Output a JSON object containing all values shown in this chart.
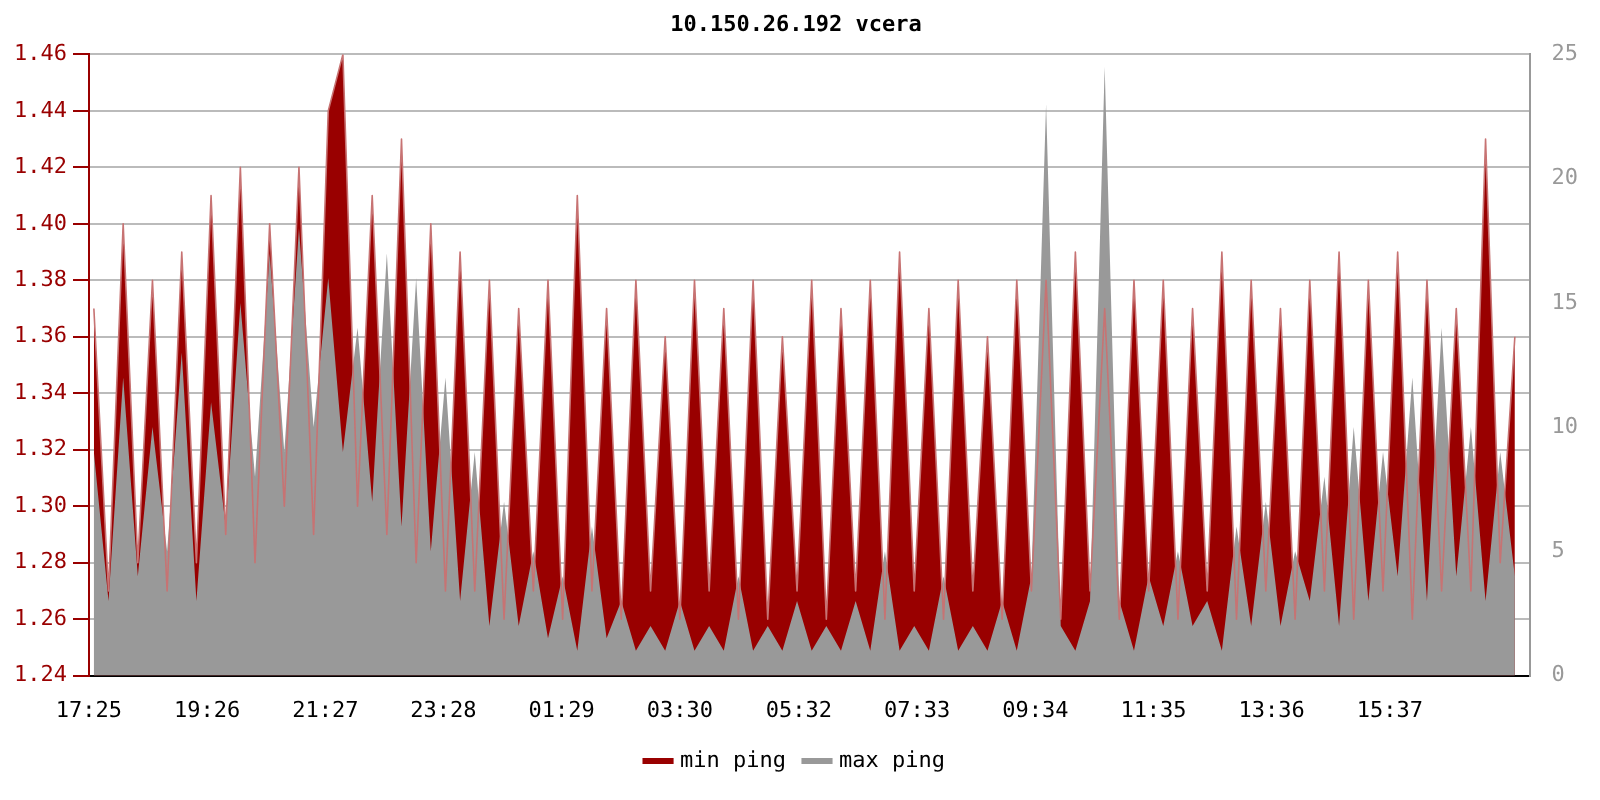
{
  "chart_data": {
    "type": "area",
    "title": "10.150.26.192 vcera",
    "x": [
      "--01-01T17:30",
      "--01-01T17:45",
      "--01-01T18:00",
      "--01-01T18:15",
      "--01-01T18:30",
      "--01-01T18:45",
      "--01-01T19:00",
      "--01-01T19:15",
      "--01-01T19:30",
      "--01-01T19:45",
      "--01-01T20:00",
      "--01-01T20:15",
      "--01-01T20:30",
      "--01-01T20:45",
      "--01-01T21:00",
      "--01-01T21:15",
      "--01-01T21:30",
      "--01-01T21:45",
      "--01-01T22:00",
      "--01-01T22:15",
      "--01-01T22:30",
      "--01-01T22:45",
      "--01-01T23:00",
      "--01-01T23:15",
      "--01-01T23:30",
      "--01-01T23:45",
      "--01-02T00:00",
      "--01-02T00:15",
      "--01-02T00:30",
      "--01-02T00:45",
      "--01-02T01:00",
      "--01-02T01:15",
      "--01-02T01:30",
      "--01-02T01:45",
      "--01-02T02:00",
      "--01-02T02:15",
      "--01-02T02:30",
      "--01-02T02:45",
      "--01-02T03:00",
      "--01-02T03:15",
      "--01-02T03:30",
      "--01-02T03:45",
      "--01-02T04:00",
      "--01-02T04:15",
      "--01-02T04:30",
      "--01-02T04:45",
      "--01-02T05:00",
      "--01-02T05:15",
      "--01-02T05:30",
      "--01-02T05:45",
      "--01-02T06:00",
      "--01-02T06:15",
      "--01-02T06:30",
      "--01-02T06:45",
      "--01-02T07:00",
      "--01-02T07:15",
      "--01-02T07:30",
      "--01-02T07:45",
      "--01-02T08:00",
      "--01-02T08:15",
      "--01-02T08:30",
      "--01-02T08:45",
      "--01-02T09:00",
      "--01-02T09:15",
      "--01-02T09:30",
      "--01-02T09:45",
      "--01-02T10:00",
      "--01-02T10:15",
      "--01-02T10:30",
      "--01-02T10:45",
      "--01-02T11:00",
      "--01-02T11:15",
      "--01-02T11:30",
      "--01-02T11:45",
      "--01-02T12:00",
      "--01-02T12:15",
      "--01-02T12:30",
      "--01-02T12:45",
      "--01-02T13:00",
      "--01-02T13:15",
      "--01-02T13:30",
      "--01-02T13:45",
      "--01-02T14:00",
      "--01-02T14:15",
      "--01-02T14:30",
      "--01-02T14:45",
      "--01-02T15:00",
      "--01-02T15:15",
      "--01-02T15:30",
      "--01-02T15:45",
      "--01-02T16:00",
      "--01-02T16:15",
      "--01-02T16:30",
      "--01-02T16:45",
      "--01-02T17:00",
      "--01-02T17:15",
      "--01-02T17:30",
      "--01-02T17:45"
    ],
    "series": [
      {
        "name": "min ping",
        "color": "#990000",
        "axis": "y",
        "values": [
          1.37,
          1.27,
          1.4,
          1.28,
          1.38,
          1.27,
          1.39,
          1.28,
          1.41,
          1.29,
          1.42,
          1.28,
          1.4,
          1.3,
          1.42,
          1.29,
          1.44,
          1.46,
          1.3,
          1.41,
          1.29,
          1.43,
          1.28,
          1.4,
          1.27,
          1.39,
          1.27,
          1.38,
          1.26,
          1.37,
          1.27,
          1.38,
          1.26,
          1.41,
          1.27,
          1.37,
          1.26,
          1.38,
          1.27,
          1.36,
          1.26,
          1.38,
          1.27,
          1.37,
          1.26,
          1.38,
          1.26,
          1.36,
          1.27,
          1.38,
          1.26,
          1.37,
          1.27,
          1.38,
          1.26,
          1.39,
          1.27,
          1.37,
          1.26,
          1.38,
          1.27,
          1.36,
          1.26,
          1.38,
          1.27,
          1.38,
          1.26,
          1.39,
          1.27,
          1.37,
          1.26,
          1.38,
          1.27,
          1.38,
          1.26,
          1.37,
          1.27,
          1.39,
          1.26,
          1.38,
          1.27,
          1.37,
          1.26,
          1.38,
          1.27,
          1.39,
          1.26,
          1.38,
          1.27,
          1.39,
          1.26,
          1.38,
          1.27,
          1.37,
          1.27,
          1.43,
          1.28,
          1.36
        ]
      },
      {
        "name": "max ping",
        "color": "#999999",
        "axis": "y2",
        "values": [
          9,
          3,
          12,
          4,
          10,
          5,
          13,
          3,
          11,
          6,
          15,
          8,
          17,
          9,
          18,
          10,
          16,
          9,
          14,
          7,
          17,
          6,
          16,
          5,
          12,
          3,
          9,
          2,
          7,
          2,
          5,
          1.5,
          4,
          1,
          6,
          1.5,
          3,
          1,
          2,
          1,
          3,
          1,
          2,
          1,
          4,
          1,
          2,
          1,
          3,
          1,
          2,
          1,
          3,
          1,
          5,
          1,
          2,
          1,
          4,
          1,
          2,
          1,
          3,
          1,
          4,
          23,
          2,
          1,
          3,
          24.5,
          3,
          1,
          4,
          2,
          5,
          2,
          3,
          1,
          6,
          2,
          7,
          2,
          5,
          3,
          8,
          2,
          10,
          3,
          9,
          4,
          12,
          3,
          14,
          4,
          10,
          3,
          9,
          4
        ]
      }
    ],
    "xlim": [
      "--01-01T17:25",
      "--01-02T18:00"
    ],
    "xticks": [
      {
        "value": "--01-01T17:25",
        "label": "17:25"
      },
      {
        "value": "--01-01T19:26",
        "label": "19:26"
      },
      {
        "value": "--01-01T21:27",
        "label": "21:27"
      },
      {
        "value": "--01-01T23:28",
        "label": "23:28"
      },
      {
        "value": "--01-02T01:29",
        "label": "01:29"
      },
      {
        "value": "--01-02T03:30",
        "label": "03:30"
      },
      {
        "value": "--01-02T05:32",
        "label": "05:32"
      },
      {
        "value": "--01-02T07:33",
        "label": "07:33"
      },
      {
        "value": "--01-02T09:34",
        "label": "09:34"
      },
      {
        "value": "--01-02T11:35",
        "label": "11:35"
      },
      {
        "value": "--01-02T13:36",
        "label": "13:36"
      },
      {
        "value": "--01-02T15:37",
        "label": "15:37"
      }
    ],
    "ylim": [
      1.24,
      1.46
    ],
    "yticks": [
      1.24,
      1.26,
      1.28,
      {
        "value": 1.3,
        "label": "1.30"
      },
      1.32,
      1.34,
      1.36,
      1.38,
      {
        "value": 1.4,
        "label": "1.40"
      },
      1.42,
      1.44,
      1.46
    ],
    "y2lim": [
      0,
      25
    ],
    "y2ticks": [
      0,
      5,
      10,
      15,
      20,
      25
    ],
    "grid": "y",
    "legend": "bottom"
  }
}
